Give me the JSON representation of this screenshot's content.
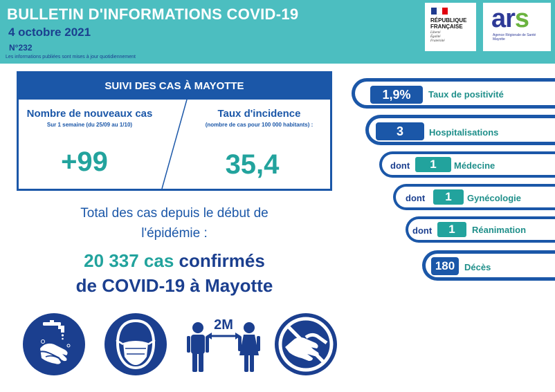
{
  "header": {
    "title": "BULLETIN D'INFORMATIONS COVID-19",
    "date": "4 octobre 2021",
    "number": "N°232",
    "note": "Les informations publiées sont mises à jour quotidiennement",
    "background": "#4cbec0"
  },
  "logos": {
    "republique": {
      "line1": "RÉPUBLIQUE",
      "line2": "FRANÇAISE",
      "motto": [
        "Liberté",
        "Égalité",
        "Fraternité"
      ]
    },
    "ars": {
      "word": "ars",
      "subtitle_line1": "Agence Régionale de Santé",
      "subtitle_line2": "Mayotte"
    }
  },
  "cases": {
    "heading": "SUIVI DES CAS À MAYOTTE",
    "new_cases": {
      "title": "Nombre de nouveaux cas",
      "subtitle": "Sur 1 semaine (du 25/09 au 1/10)",
      "value": "+99"
    },
    "incidence": {
      "title": "Taux d'incidence",
      "subtitle": "(nombre de cas pour 100 000 habitants) :",
      "value": "35,4"
    }
  },
  "total": {
    "line1": "Total des cas depuis le début de",
    "line2": "l'épidémie :",
    "count": "20 337 cas",
    "confirmed": "confirmés",
    "line4": "de COVID-19 à Mayotte"
  },
  "indicators": {
    "positivity": {
      "value": "1,9%",
      "label": "Taux de positivité"
    },
    "hospitalisations": {
      "value": "3",
      "label": "Hospitalisations"
    },
    "medecine": {
      "prefix": "dont",
      "value": "1",
      "label": "Médecine"
    },
    "gynecologie": {
      "prefix": "dont",
      "value": "1",
      "label": "Gynécologie"
    },
    "reanimation": {
      "prefix": "dont",
      "value": "1",
      "label": "Réanimation"
    },
    "deces": {
      "value": "180",
      "label": "Décès"
    }
  },
  "icons": {
    "handwash": "handwash-icon",
    "mask": "mask-icon",
    "distance": {
      "name": "distance-icon",
      "label": "2M"
    },
    "no_handshake": "no-handshake-icon"
  },
  "colors": {
    "navy": "#1b57a8",
    "dark_navy": "#1b3f8f",
    "teal": "#22a39d",
    "header": "#4cbec0"
  }
}
